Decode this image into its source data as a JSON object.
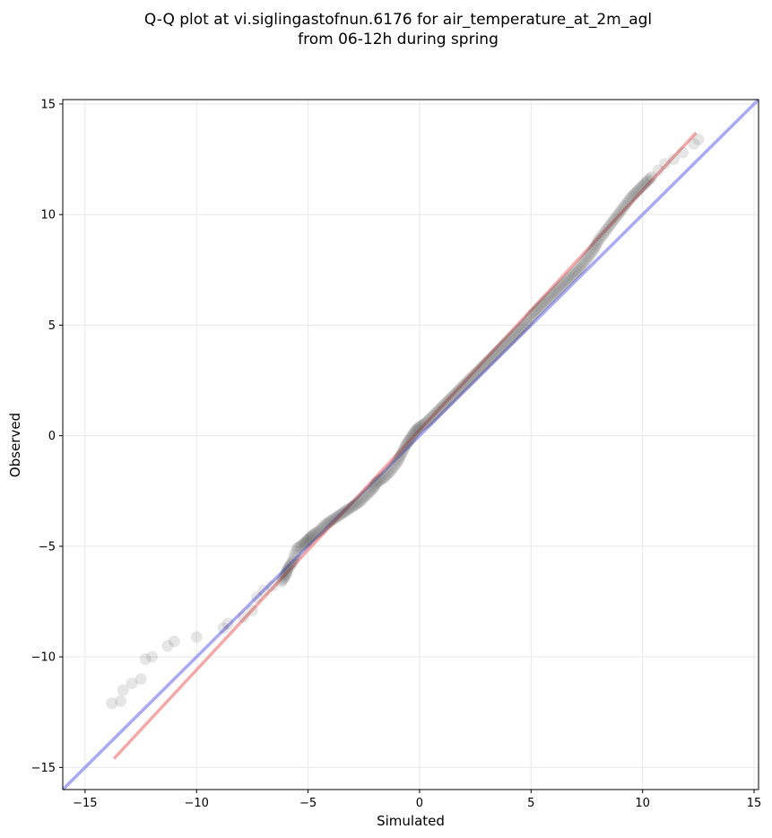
{
  "chart_data": {
    "type": "scatter",
    "title": "Q-Q plot at vi.siglingastofnun.6176 for air_temperature_at_2m_agl",
    "subtitle": "from 06-12h during spring",
    "xlabel": "Simulated",
    "ylabel": "Observed",
    "xlim": [
      -16,
      15.2
    ],
    "ylim": [
      -16,
      15.2
    ],
    "xticks": [
      -15,
      -10,
      -5,
      0,
      5,
      10,
      15
    ],
    "yticks": [
      -15,
      -10,
      -5,
      0,
      5,
      10,
      15
    ],
    "xtick_labels": [
      "−15",
      "−10",
      "−5",
      "0",
      "5",
      "10",
      "15"
    ],
    "ytick_labels": [
      "−15",
      "−10",
      "−5",
      "0",
      "5",
      "10",
      "15"
    ],
    "grid": true,
    "colors": {
      "points": "#404040",
      "identity_line": "#8c8cf0",
      "fit_line": "#f08c8c"
    },
    "identity_line": {
      "x": [
        -16,
        15.2
      ],
      "y": [
        -16,
        15.2
      ]
    },
    "fit_line": {
      "x": [
        -13.7,
        12.4
      ],
      "y": [
        -14.6,
        13.7
      ]
    },
    "series": [
      {
        "points": [
          [
            -13.8,
            -12.1
          ],
          [
            -13.4,
            -12.0
          ],
          [
            -13.3,
            -11.5
          ],
          [
            -12.9,
            -11.2
          ],
          [
            -12.5,
            -11.0
          ],
          [
            -12.3,
            -10.1
          ],
          [
            -12.0,
            -10.0
          ],
          [
            -11.3,
            -9.5
          ],
          [
            -11.0,
            -9.3
          ],
          [
            -10.0,
            -9.1
          ],
          [
            -8.8,
            -8.7
          ],
          [
            -8.6,
            -8.5
          ],
          [
            -7.9,
            -8.2
          ],
          [
            -7.5,
            -7.9
          ],
          [
            -7.3,
            -7.3
          ],
          [
            -7.0,
            -7.0
          ],
          [
            -6.6,
            -6.8
          ],
          [
            -6.2,
            -6.6
          ],
          [
            -6.0,
            -6.3
          ],
          [
            -5.9,
            -6.0
          ],
          [
            -5.7,
            -5.7
          ],
          [
            -5.5,
            -5.1
          ],
          [
            -5.2,
            -4.9
          ],
          [
            -5.0,
            -4.7
          ],
          [
            -4.8,
            -4.5
          ],
          [
            -4.5,
            -4.3
          ],
          [
            -4.2,
            -4.0
          ],
          [
            -3.9,
            -3.8
          ],
          [
            -3.6,
            -3.6
          ],
          [
            -3.3,
            -3.4
          ],
          [
            -3.0,
            -3.2
          ],
          [
            -2.7,
            -3.0
          ],
          [
            -2.4,
            -2.7
          ],
          [
            -2.1,
            -2.4
          ],
          [
            -1.9,
            -2.1
          ],
          [
            -1.6,
            -1.9
          ],
          [
            -1.3,
            -1.6
          ],
          [
            -1.0,
            -1.2
          ],
          [
            -0.8,
            -0.8
          ],
          [
            -0.6,
            -0.4
          ],
          [
            -0.4,
            -0.1
          ],
          [
            -0.2,
            0.2
          ],
          [
            0.0,
            0.4
          ],
          [
            0.3,
            0.6
          ],
          [
            0.6,
            0.9
          ],
          [
            0.9,
            1.2
          ],
          [
            1.2,
            1.5
          ],
          [
            1.5,
            1.8
          ],
          [
            1.8,
            2.1
          ],
          [
            2.1,
            2.4
          ],
          [
            2.4,
            2.7
          ],
          [
            2.7,
            3.0
          ],
          [
            3.0,
            3.3
          ],
          [
            3.3,
            3.6
          ],
          [
            3.6,
            3.9
          ],
          [
            3.9,
            4.2
          ],
          [
            4.2,
            4.5
          ],
          [
            4.5,
            4.8
          ],
          [
            4.8,
            5.1
          ],
          [
            5.1,
            5.5
          ],
          [
            5.4,
            5.8
          ],
          [
            5.7,
            6.1
          ],
          [
            6.0,
            6.4
          ],
          [
            6.3,
            6.7
          ],
          [
            6.6,
            7.0
          ],
          [
            6.9,
            7.3
          ],
          [
            7.2,
            7.6
          ],
          [
            7.5,
            8.0
          ],
          [
            7.8,
            8.4
          ],
          [
            8.0,
            8.8
          ],
          [
            8.3,
            9.2
          ],
          [
            8.6,
            9.6
          ],
          [
            8.9,
            10.0
          ],
          [
            9.2,
            10.4
          ],
          [
            9.5,
            10.8
          ],
          [
            9.8,
            11.1
          ],
          [
            10.1,
            11.4
          ],
          [
            10.4,
            11.7
          ],
          [
            10.7,
            12.0
          ],
          [
            11.0,
            12.3
          ],
          [
            11.4,
            12.5
          ],
          [
            11.8,
            12.8
          ],
          [
            12.3,
            13.2
          ],
          [
            12.5,
            13.4
          ]
        ]
      }
    ]
  }
}
